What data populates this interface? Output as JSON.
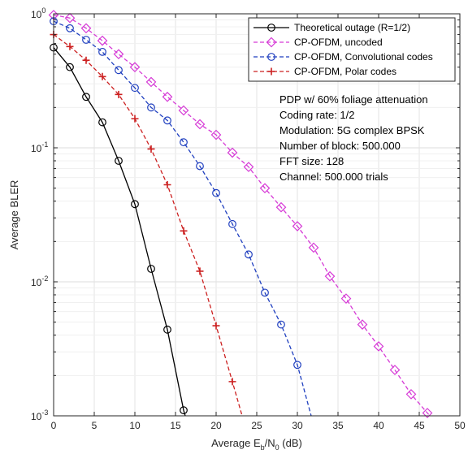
{
  "chart_data": {
    "type": "line",
    "xlabel": "Average E_b/N_0 (dB)",
    "xlabel_parts": {
      "main": "Average E",
      "sub1": "b",
      "mid": "/N",
      "sub2": "0",
      "tail": " (dB)"
    },
    "ylabel": "Average BLER",
    "xlim": [
      0,
      50
    ],
    "ylim": [
      0.001,
      1
    ],
    "yscale": "log",
    "grid": true,
    "legend_position": "top-right",
    "x_ticks": [
      "0",
      "5",
      "10",
      "15",
      "20",
      "25",
      "30",
      "35",
      "40",
      "45",
      "50"
    ],
    "y_ticks": [
      {
        "base": "10",
        "exp": "0",
        "value": 1
      },
      {
        "base": "10",
        "exp": "-1",
        "value": 0.1
      },
      {
        "base": "10",
        "exp": "-2",
        "value": 0.01
      },
      {
        "base": "10",
        "exp": "-3",
        "value": 0.001
      }
    ],
    "series": [
      {
        "name": "Theoretical outage (R=1/2)",
        "color": "#000000",
        "line_style": "solid",
        "marker": "circle",
        "x": [
          0,
          2,
          4,
          6,
          8,
          10,
          12,
          14,
          16
        ],
        "y": [
          0.56,
          0.4,
          0.24,
          0.155,
          0.08,
          0.038,
          0.0125,
          0.0044,
          0.0011
        ],
        "line_end": [
          16.2,
          0.001
        ]
      },
      {
        "name": "CP-OFDM, uncoded",
        "color": "#d63ad6",
        "line_style": "dashed",
        "marker": "diamond",
        "x": [
          0,
          2,
          4,
          6,
          8,
          10,
          12,
          14,
          16,
          18,
          20,
          22,
          24,
          26,
          28,
          30,
          32,
          34,
          36,
          38,
          40,
          42,
          44,
          46
        ],
        "y": [
          0.98,
          0.93,
          0.78,
          0.63,
          0.5,
          0.4,
          0.31,
          0.24,
          0.19,
          0.15,
          0.125,
          0.092,
          0.072,
          0.05,
          0.036,
          0.026,
          0.018,
          0.011,
          0.0075,
          0.0048,
          0.0033,
          0.0022,
          0.00145,
          0.00105
        ],
        "line_end": [
          46.3,
          0.001
        ]
      },
      {
        "name": "CP-OFDM, Convolutional codes",
        "color": "#1f3fbf",
        "line_style": "dashed",
        "marker": "circle",
        "x": [
          0,
          2,
          4,
          6,
          8,
          10,
          12,
          14,
          16,
          18,
          20,
          22,
          24,
          26,
          28,
          30
        ],
        "y": [
          0.88,
          0.78,
          0.64,
          0.52,
          0.38,
          0.28,
          0.2,
          0.16,
          0.11,
          0.073,
          0.046,
          0.027,
          0.016,
          0.0083,
          0.0048,
          0.0024
        ],
        "line_end": [
          31.7,
          0.001
        ]
      },
      {
        "name": "CP-OFDM, Polar codes",
        "color": "#cc2020",
        "line_style": "dashed",
        "marker": "plus",
        "x": [
          0,
          2,
          4,
          6,
          8,
          10,
          12,
          14,
          16,
          18,
          20,
          22
        ],
        "y": [
          0.7,
          0.57,
          0.45,
          0.34,
          0.25,
          0.165,
          0.098,
          0.053,
          0.024,
          0.012,
          0.0047,
          0.0018
        ],
        "line_end": [
          23.2,
          0.001
        ]
      }
    ],
    "annotations": [
      "PDP w/ 60% foliage attenuation",
      "Coding rate: 1/2",
      "Modulation: 5G complex BPSK",
      "Number of block: 500.000",
      "FFT size: 128",
      "Channel: 500.000 trials"
    ]
  }
}
